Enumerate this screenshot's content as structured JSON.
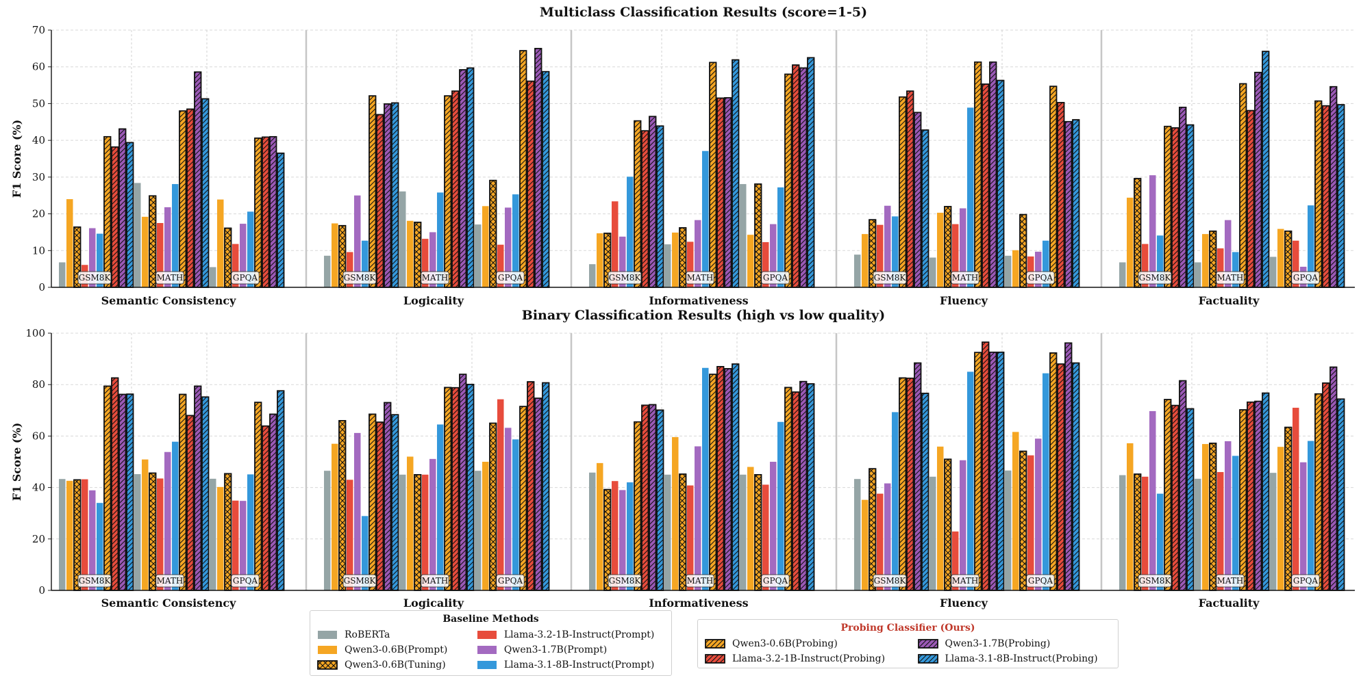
{
  "chart_data": [
    {
      "type": "bar",
      "title": "Multiclass Classification Results (score=1-5)",
      "ylabel": "F1 Score (%)",
      "xlabel": "",
      "ylim": [
        0,
        70
      ],
      "yticks": [
        0,
        10,
        20,
        30,
        40,
        50,
        60,
        70
      ],
      "grid": true,
      "groups": [
        "Semantic Consistency",
        "Logicality",
        "Informativeness",
        "Fluency",
        "Factuality"
      ],
      "datasets": [
        "GSM8K",
        "MATH",
        "GPQA"
      ],
      "values": [
        [
          [
            6.8,
            24.0,
            16.4,
            6.1,
            16.1,
            14.6,
            41.0,
            38.2,
            43.1,
            39.4
          ],
          [
            28.4,
            19.2,
            24.9,
            17.5,
            21.8,
            28.1,
            48.0,
            48.5,
            58.6,
            51.3
          ],
          [
            5.5,
            23.9,
            16.1,
            11.8,
            17.3,
            20.6,
            40.6,
            40.9,
            41.0,
            36.5
          ]
        ],
        [
          [
            8.6,
            17.4,
            16.8,
            9.6,
            25.0,
            12.7,
            52.1,
            47.0,
            49.9,
            50.2
          ],
          [
            26.1,
            18.1,
            17.7,
            13.2,
            15.0,
            25.8,
            52.1,
            53.4,
            59.2,
            59.7
          ],
          [
            17.1,
            22.1,
            29.1,
            11.6,
            21.7,
            25.3,
            64.4,
            56.1,
            65.0,
            58.7
          ]
        ],
        [
          [
            6.3,
            14.7,
            14.7,
            23.4,
            13.8,
            30.1,
            45.3,
            42.6,
            46.5,
            43.9
          ],
          [
            11.7,
            14.9,
            16.2,
            12.4,
            18.3,
            37.1,
            61.2,
            51.5,
            51.6,
            61.9
          ],
          [
            28.1,
            14.3,
            28.1,
            12.3,
            17.2,
            27.2,
            58.0,
            60.5,
            59.7,
            62.5
          ]
        ],
        [
          [
            8.9,
            14.5,
            18.4,
            17.0,
            22.2,
            19.3,
            51.8,
            53.4,
            47.6,
            42.8
          ],
          [
            8.1,
            20.3,
            22.0,
            17.2,
            21.5,
            48.9,
            61.3,
            55.3,
            61.3,
            56.3
          ],
          [
            8.6,
            10.1,
            19.8,
            8.4,
            9.7,
            12.7,
            54.7,
            50.3,
            45.1,
            45.6
          ]
        ],
        [
          [
            6.8,
            24.4,
            29.6,
            11.8,
            30.5,
            14.1,
            43.8,
            43.4,
            49.0,
            44.2
          ],
          [
            6.8,
            14.5,
            15.3,
            10.6,
            18.3,
            9.6,
            55.4,
            48.1,
            58.5,
            64.2
          ],
          [
            8.3,
            15.9,
            15.3,
            12.7,
            5.6,
            22.3,
            50.7,
            49.4,
            54.6,
            49.7
          ]
        ]
      ]
    },
    {
      "type": "bar",
      "title": "Binary Classification Results (high vs low quality)",
      "ylabel": "F1 Score (%)",
      "xlabel": "",
      "ylim": [
        0,
        100
      ],
      "yticks": [
        0,
        20,
        40,
        60,
        80,
        100
      ],
      "grid": true,
      "groups": [
        "Semantic Consistency",
        "Logicality",
        "Informativeness",
        "Fluency",
        "Factuality"
      ],
      "datasets": [
        "GSM8K",
        "MATH",
        "GPQA"
      ],
      "values": [
        [
          [
            43.3,
            42.6,
            43.0,
            43.2,
            38.9,
            34.0,
            79.4,
            82.6,
            76.2,
            76.3
          ],
          [
            45.2,
            50.9,
            45.6,
            43.5,
            53.8,
            57.8,
            76.2,
            68.0,
            79.4,
            75.2
          ],
          [
            43.4,
            40.2,
            45.4,
            34.9,
            34.8,
            45.1,
            73.1,
            63.9,
            68.5,
            77.6
          ]
        ],
        [
          [
            46.5,
            57.0,
            66.0,
            43.0,
            61.2,
            28.9,
            68.5,
            65.4,
            73.0,
            68.3
          ],
          [
            45.0,
            52.0,
            45.0,
            45.0,
            51.1,
            64.5,
            78.9,
            78.8,
            84.0,
            80.1
          ],
          [
            46.5,
            50.0,
            65.0,
            74.3,
            63.2,
            58.7,
            71.5,
            81.1,
            74.7,
            80.7
          ]
        ],
        [
          [
            45.8,
            49.5,
            39.2,
            42.5,
            39.0,
            42.0,
            65.5,
            72.0,
            72.2,
            70.1
          ],
          [
            45.0,
            59.6,
            45.2,
            40.8,
            56.0,
            86.5,
            84.0,
            87.0,
            86.2,
            88.0
          ],
          [
            45.0,
            48.0,
            45.0,
            41.1,
            50.0,
            65.5,
            78.9,
            77.1,
            81.2,
            80.3
          ]
        ],
        [
          [
            43.3,
            35.2,
            47.3,
            37.6,
            41.6,
            69.3,
            82.6,
            82.5,
            88.4,
            76.6
          ],
          [
            44.2,
            55.9,
            51.0,
            22.9,
            50.6,
            85.0,
            92.5,
            96.5,
            92.6,
            92.6
          ],
          [
            46.6,
            61.6,
            54.1,
            52.5,
            59.0,
            84.4,
            92.3,
            88.0,
            96.2,
            88.4
          ]
        ],
        [
          [
            44.8,
            57.2,
            45.2,
            44.2,
            69.7,
            37.6,
            74.2,
            71.9,
            81.5,
            70.6
          ],
          [
            43.4,
            56.9,
            57.2,
            46.0,
            58.0,
            52.3,
            70.2,
            73.2,
            73.5,
            76.7
          ],
          [
            45.7,
            55.8,
            63.4,
            71.0,
            49.8,
            58.1,
            76.4,
            80.6,
            86.8,
            74.4
          ]
        ]
      ]
    }
  ],
  "methods": [
    {
      "name": "RoBERTa",
      "color": "#95a5a6",
      "hatch": "none"
    },
    {
      "name": "Qwen3-0.6B(Prompt)",
      "color": "#f5a623",
      "hatch": "none"
    },
    {
      "name": "Qwen3-0.6B(Tuning)",
      "color": "#f5a623",
      "hatch": "cross"
    },
    {
      "name": "Llama-3.2-1B-Instruct(Prompt)",
      "color": "#e74c3c",
      "hatch": "none"
    },
    {
      "name": "Qwen3-1.7B(Prompt)",
      "color": "#a36ac0",
      "hatch": "none"
    },
    {
      "name": "Llama-3.1-8B-Instruct(Prompt)",
      "color": "#3498db",
      "hatch": "none"
    },
    {
      "name": "Qwen3-0.6B(Probing)",
      "color": "#f5a623",
      "hatch": "diag"
    },
    {
      "name": "Llama-3.2-1B-Instruct(Probing)",
      "color": "#e74c3c",
      "hatch": "diag"
    },
    {
      "name": "Qwen3-1.7B(Probing)",
      "color": "#9b59b6",
      "hatch": "diag"
    },
    {
      "name": "Llama-3.1-8B-Instruct(Probing)",
      "color": "#3498db",
      "hatch": "diag"
    }
  ],
  "legend": {
    "baseline_title": "Baseline Methods",
    "probing_title": "Probing Classifier (Ours)",
    "probing_title_color": "#c0392b",
    "baseline_items": [
      "RoBERTa",
      "Llama-3.2-1B-Instruct(Prompt)",
      "Qwen3-0.6B(Prompt)",
      "Qwen3-1.7B(Prompt)",
      "Qwen3-0.6B(Tuning)",
      "Llama-3.1-8B-Instruct(Prompt)"
    ],
    "probing_items": [
      "Qwen3-0.6B(Probing)",
      "Qwen3-1.7B(Probing)",
      "Llama-3.2-1B-Instruct(Probing)",
      "Llama-3.1-8B-Instruct(Probing)"
    ]
  }
}
